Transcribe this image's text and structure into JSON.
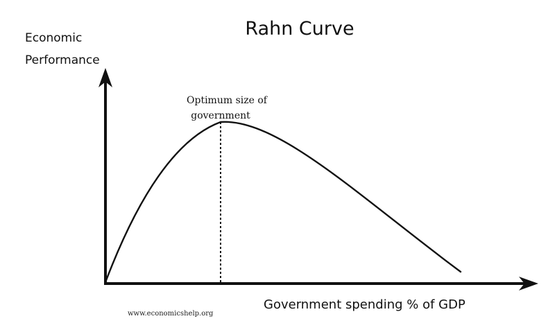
{
  "title": "Rahn Curve",
  "y_axis_label": {
    "line1": "Economic",
    "line2": "Performance"
  },
  "x_axis_label": "Government spending % of GDP",
  "annotation": {
    "line1": "Optimum size of",
    "line2": "government"
  },
  "source": "www.economicshelp.org",
  "colors": {
    "ink": "#111111",
    "background": "#ffffff"
  }
}
